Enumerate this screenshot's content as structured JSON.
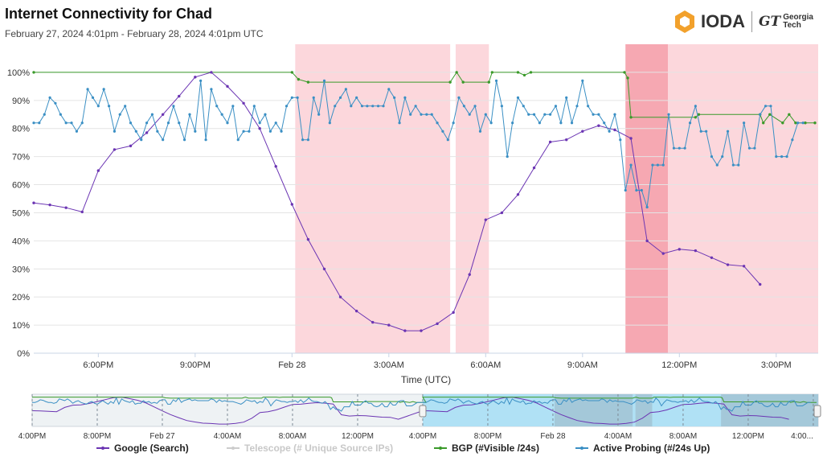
{
  "header": {
    "title": "Internet Connectivity for Chad",
    "subtitle": "February 27, 2024 4:01pm - February 28, 2024 4:01pm UTC",
    "logo_text": "IODA",
    "partner_mark": "GT",
    "partner_name_line1": "Georgia",
    "partner_name_line2": "Tech"
  },
  "colors": {
    "google": "#6b35b3",
    "bgp": "#3a9a2a",
    "active_probing": "#3a8fc4",
    "telescope": "#c8c8c8",
    "outage_light": "#fcd7dc",
    "outage_dark": "#f6a8b2",
    "navigator_selection": "#a9dff5",
    "logo_orange": "#f2a12c"
  },
  "chart_data": {
    "type": "line",
    "xlabel": "Time (UTC)",
    "ylabel": "",
    "x_unit": "hours after Feb 27 4:00PM UTC",
    "x_range": [
      0,
      24.3
    ],
    "ylim": [
      0,
      110
    ],
    "y_ticks": [
      "0%",
      "10%",
      "20%",
      "30%",
      "40%",
      "50%",
      "60%",
      "70%",
      "80%",
      "90%",
      "100%"
    ],
    "x_ticks": [
      {
        "x": 2,
        "label": "6:00PM"
      },
      {
        "x": 5,
        "label": "9:00PM"
      },
      {
        "x": 8,
        "label": "Feb 28"
      },
      {
        "x": 11,
        "label": "3:00AM"
      },
      {
        "x": 14,
        "label": "6:00AM"
      },
      {
        "x": 17,
        "label": "9:00AM"
      },
      {
        "x": 20,
        "label": "12:00PM"
      },
      {
        "x": 23,
        "label": "3:00PM"
      }
    ],
    "outages": [
      {
        "start": 8.1,
        "end": 12.9,
        "level": "light"
      },
      {
        "start": 13.07,
        "end": 14.1,
        "level": "light"
      },
      {
        "start": 18.33,
        "end": 19.65,
        "level": "dark"
      },
      {
        "start": 19.65,
        "end": 24.3,
        "level": "light"
      }
    ],
    "grid": true,
    "series": [
      {
        "name": "Google (Search)",
        "key": "google",
        "points": [
          [
            0.0,
            53.5
          ],
          [
            0.5,
            52.8
          ],
          [
            1.0,
            51.8
          ],
          [
            1.5,
            50.3
          ],
          [
            2.0,
            65.0
          ],
          [
            2.5,
            72.5
          ],
          [
            3.0,
            73.8
          ],
          [
            3.5,
            78.5
          ],
          [
            4.0,
            85.0
          ],
          [
            4.5,
            91.5
          ],
          [
            5.0,
            98.3
          ],
          [
            5.5,
            100.0
          ],
          [
            6.0,
            95.0
          ],
          [
            6.5,
            89.0
          ],
          [
            7.0,
            80.0
          ],
          [
            7.5,
            66.5
          ],
          [
            8.0,
            53.0
          ],
          [
            8.5,
            40.5
          ],
          [
            9.0,
            30.0
          ],
          [
            9.5,
            20.0
          ],
          [
            10.0,
            15.0
          ],
          [
            10.5,
            11.0
          ],
          [
            11.0,
            10.0
          ],
          [
            11.5,
            8.0
          ],
          [
            12.0,
            8.0
          ],
          [
            12.5,
            10.5
          ],
          [
            13.0,
            14.5
          ],
          [
            13.5,
            28.0
          ],
          [
            14.0,
            47.5
          ],
          [
            14.5,
            50.0
          ],
          [
            15.0,
            56.5
          ],
          [
            15.5,
            66.0
          ],
          [
            16.0,
            75.2
          ],
          [
            16.5,
            76.0
          ],
          [
            17.0,
            79.0
          ],
          [
            17.5,
            81.0
          ],
          [
            18.0,
            79.5
          ],
          [
            18.5,
            76.5
          ],
          [
            19.0,
            40.0
          ],
          [
            19.5,
            35.5
          ],
          [
            20.0,
            37.0
          ],
          [
            20.5,
            36.5
          ],
          [
            21.0,
            34.0
          ],
          [
            21.5,
            31.5
          ],
          [
            22.0,
            31.0
          ],
          [
            22.5,
            24.5
          ]
        ]
      },
      {
        "name": "Telescope (# Unique Source IPs)",
        "key": "telescope",
        "disabled": true,
        "points": []
      },
      {
        "name": "BGP (#Visible /24s)",
        "key": "bgp",
        "points": [
          [
            0.0,
            100
          ],
          [
            8.0,
            100
          ],
          [
            8.2,
            97.5
          ],
          [
            8.5,
            96.5
          ],
          [
            12.9,
            96.5
          ],
          [
            13.1,
            100
          ],
          [
            13.3,
            96.5
          ],
          [
            14.1,
            96.5
          ],
          [
            14.2,
            100
          ],
          [
            15.0,
            100
          ],
          [
            15.2,
            99
          ],
          [
            15.4,
            100
          ],
          [
            18.3,
            100
          ],
          [
            18.4,
            98
          ],
          [
            18.5,
            84
          ],
          [
            20.5,
            84
          ],
          [
            20.6,
            85
          ],
          [
            22.5,
            85
          ],
          [
            22.6,
            82
          ],
          [
            22.8,
            85
          ],
          [
            23.2,
            82
          ],
          [
            23.4,
            85
          ],
          [
            23.6,
            82
          ],
          [
            23.9,
            82
          ],
          [
            24.2,
            82
          ]
        ]
      },
      {
        "name": "Active Probing (#/24s Up)",
        "key": "active_probing",
        "points": [
          [
            0.0,
            82
          ],
          [
            0.17,
            82
          ],
          [
            0.33,
            85
          ],
          [
            0.5,
            91
          ],
          [
            0.67,
            89
          ],
          [
            0.83,
            85
          ],
          [
            1.0,
            82
          ],
          [
            1.17,
            82
          ],
          [
            1.33,
            79
          ],
          [
            1.5,
            82
          ],
          [
            1.67,
            94
          ],
          [
            1.83,
            91
          ],
          [
            2.0,
            88
          ],
          [
            2.17,
            94
          ],
          [
            2.33,
            88
          ],
          [
            2.5,
            79
          ],
          [
            2.67,
            85
          ],
          [
            2.83,
            88
          ],
          [
            3.0,
            82
          ],
          [
            3.17,
            79
          ],
          [
            3.33,
            76
          ],
          [
            3.5,
            82
          ],
          [
            3.67,
            85
          ],
          [
            3.83,
            79
          ],
          [
            4.0,
            76
          ],
          [
            4.17,
            82
          ],
          [
            4.33,
            88
          ],
          [
            4.5,
            82
          ],
          [
            4.67,
            76
          ],
          [
            4.83,
            85
          ],
          [
            5.0,
            79
          ],
          [
            5.17,
            97
          ],
          [
            5.33,
            76
          ],
          [
            5.5,
            94
          ],
          [
            5.67,
            88
          ],
          [
            5.83,
            85
          ],
          [
            6.0,
            82
          ],
          [
            6.17,
            88
          ],
          [
            6.33,
            76
          ],
          [
            6.5,
            79
          ],
          [
            6.67,
            79
          ],
          [
            6.83,
            88
          ],
          [
            7.0,
            82
          ],
          [
            7.17,
            85
          ],
          [
            7.33,
            79
          ],
          [
            7.5,
            82
          ],
          [
            7.67,
            79
          ],
          [
            7.83,
            88
          ],
          [
            8.0,
            91
          ],
          [
            8.17,
            91
          ],
          [
            8.33,
            76
          ],
          [
            8.5,
            76
          ],
          [
            8.67,
            91
          ],
          [
            8.83,
            85
          ],
          [
            9.0,
            97
          ],
          [
            9.17,
            82
          ],
          [
            9.33,
            88
          ],
          [
            9.5,
            91
          ],
          [
            9.67,
            94
          ],
          [
            9.83,
            88
          ],
          [
            10.0,
            91
          ],
          [
            10.17,
            88
          ],
          [
            10.33,
            88
          ],
          [
            10.5,
            88
          ],
          [
            10.67,
            88
          ],
          [
            10.83,
            88
          ],
          [
            11.0,
            94
          ],
          [
            11.17,
            91
          ],
          [
            11.33,
            82
          ],
          [
            11.5,
            91
          ],
          [
            11.67,
            85
          ],
          [
            11.83,
            88
          ],
          [
            12.0,
            85
          ],
          [
            12.17,
            85
          ],
          [
            12.33,
            85
          ],
          [
            12.5,
            82
          ],
          [
            12.67,
            79
          ],
          [
            12.83,
            76
          ],
          [
            13.0,
            82
          ],
          [
            13.17,
            91
          ],
          [
            13.33,
            88
          ],
          [
            13.5,
            85
          ],
          [
            13.67,
            88
          ],
          [
            13.83,
            79
          ],
          [
            14.0,
            85
          ],
          [
            14.17,
            82
          ],
          [
            14.33,
            97
          ],
          [
            14.5,
            88
          ],
          [
            14.67,
            70
          ],
          [
            14.83,
            82
          ],
          [
            15.0,
            91
          ],
          [
            15.17,
            88
          ],
          [
            15.33,
            85
          ],
          [
            15.5,
            85
          ],
          [
            15.67,
            82
          ],
          [
            15.83,
            85
          ],
          [
            16.0,
            85
          ],
          [
            16.17,
            88
          ],
          [
            16.33,
            82
          ],
          [
            16.5,
            91
          ],
          [
            16.67,
            82
          ],
          [
            16.83,
            88
          ],
          [
            17.0,
            97
          ],
          [
            17.17,
            88
          ],
          [
            17.33,
            85
          ],
          [
            17.5,
            85
          ],
          [
            17.67,
            82
          ],
          [
            17.83,
            79
          ],
          [
            18.0,
            85
          ],
          [
            18.17,
            76
          ],
          [
            18.33,
            58
          ],
          [
            18.5,
            67
          ],
          [
            18.67,
            58
          ],
          [
            18.83,
            58
          ],
          [
            19.0,
            52
          ],
          [
            19.17,
            67
          ],
          [
            19.33,
            67
          ],
          [
            19.5,
            67
          ],
          [
            19.67,
            85
          ],
          [
            19.83,
            73
          ],
          [
            20.0,
            73
          ],
          [
            20.17,
            73
          ],
          [
            20.33,
            82
          ],
          [
            20.5,
            88
          ],
          [
            20.67,
            79
          ],
          [
            20.83,
            79
          ],
          [
            21.0,
            70
          ],
          [
            21.17,
            67
          ],
          [
            21.33,
            70
          ],
          [
            21.5,
            79
          ],
          [
            21.67,
            67
          ],
          [
            21.83,
            67
          ],
          [
            22.0,
            82
          ],
          [
            22.17,
            73
          ],
          [
            22.33,
            73
          ],
          [
            22.5,
            85
          ],
          [
            22.67,
            88
          ],
          [
            22.83,
            88
          ],
          [
            23.0,
            70
          ],
          [
            23.17,
            70
          ],
          [
            23.33,
            70
          ],
          [
            23.5,
            76
          ],
          [
            23.67,
            82
          ],
          [
            23.83,
            82
          ]
        ]
      }
    ],
    "legend_position": "bottom",
    "navigator": {
      "x_ticks": [
        "4:00PM",
        "8:00PM",
        "Feb 27",
        "4:00AM",
        "8:00AM",
        "12:00PM",
        "4:00PM",
        "8:00PM",
        "Feb 28",
        "4:00AM",
        "8:00AM",
        "12:00PM",
        "4:00..."
      ]
    }
  }
}
